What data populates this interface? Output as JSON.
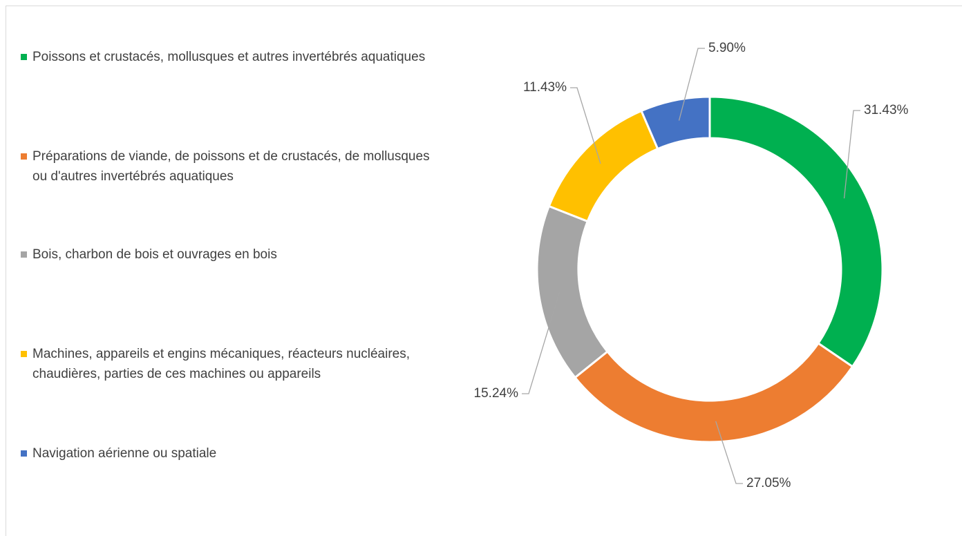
{
  "chart_data": {
    "type": "donut",
    "categories": [
      "Poissons et crustacés, mollusques et autres invertébrés aquatiques",
      "Préparations de viande, de poissons et de crustacés, de mollusques ou d'autres invertébrés aquatiques",
      "Bois, charbon de bois et ouvrages en bois",
      "Machines, appareils et engins mécaniques, réacteurs nucléaires, chaudières, parties de ces machines ou appareils",
      "Navigation aérienne ou spatiale"
    ],
    "values": [
      31.43,
      27.05,
      15.24,
      11.43,
      5.9
    ],
    "value_labels": [
      "31.43%",
      "27.05%",
      "15.24%",
      "11.43%",
      "5.90%"
    ],
    "colors": [
      "#00b050",
      "#ed7d31",
      "#a5a5a5",
      "#ffc000",
      "#4472c4"
    ],
    "legend": "left"
  }
}
